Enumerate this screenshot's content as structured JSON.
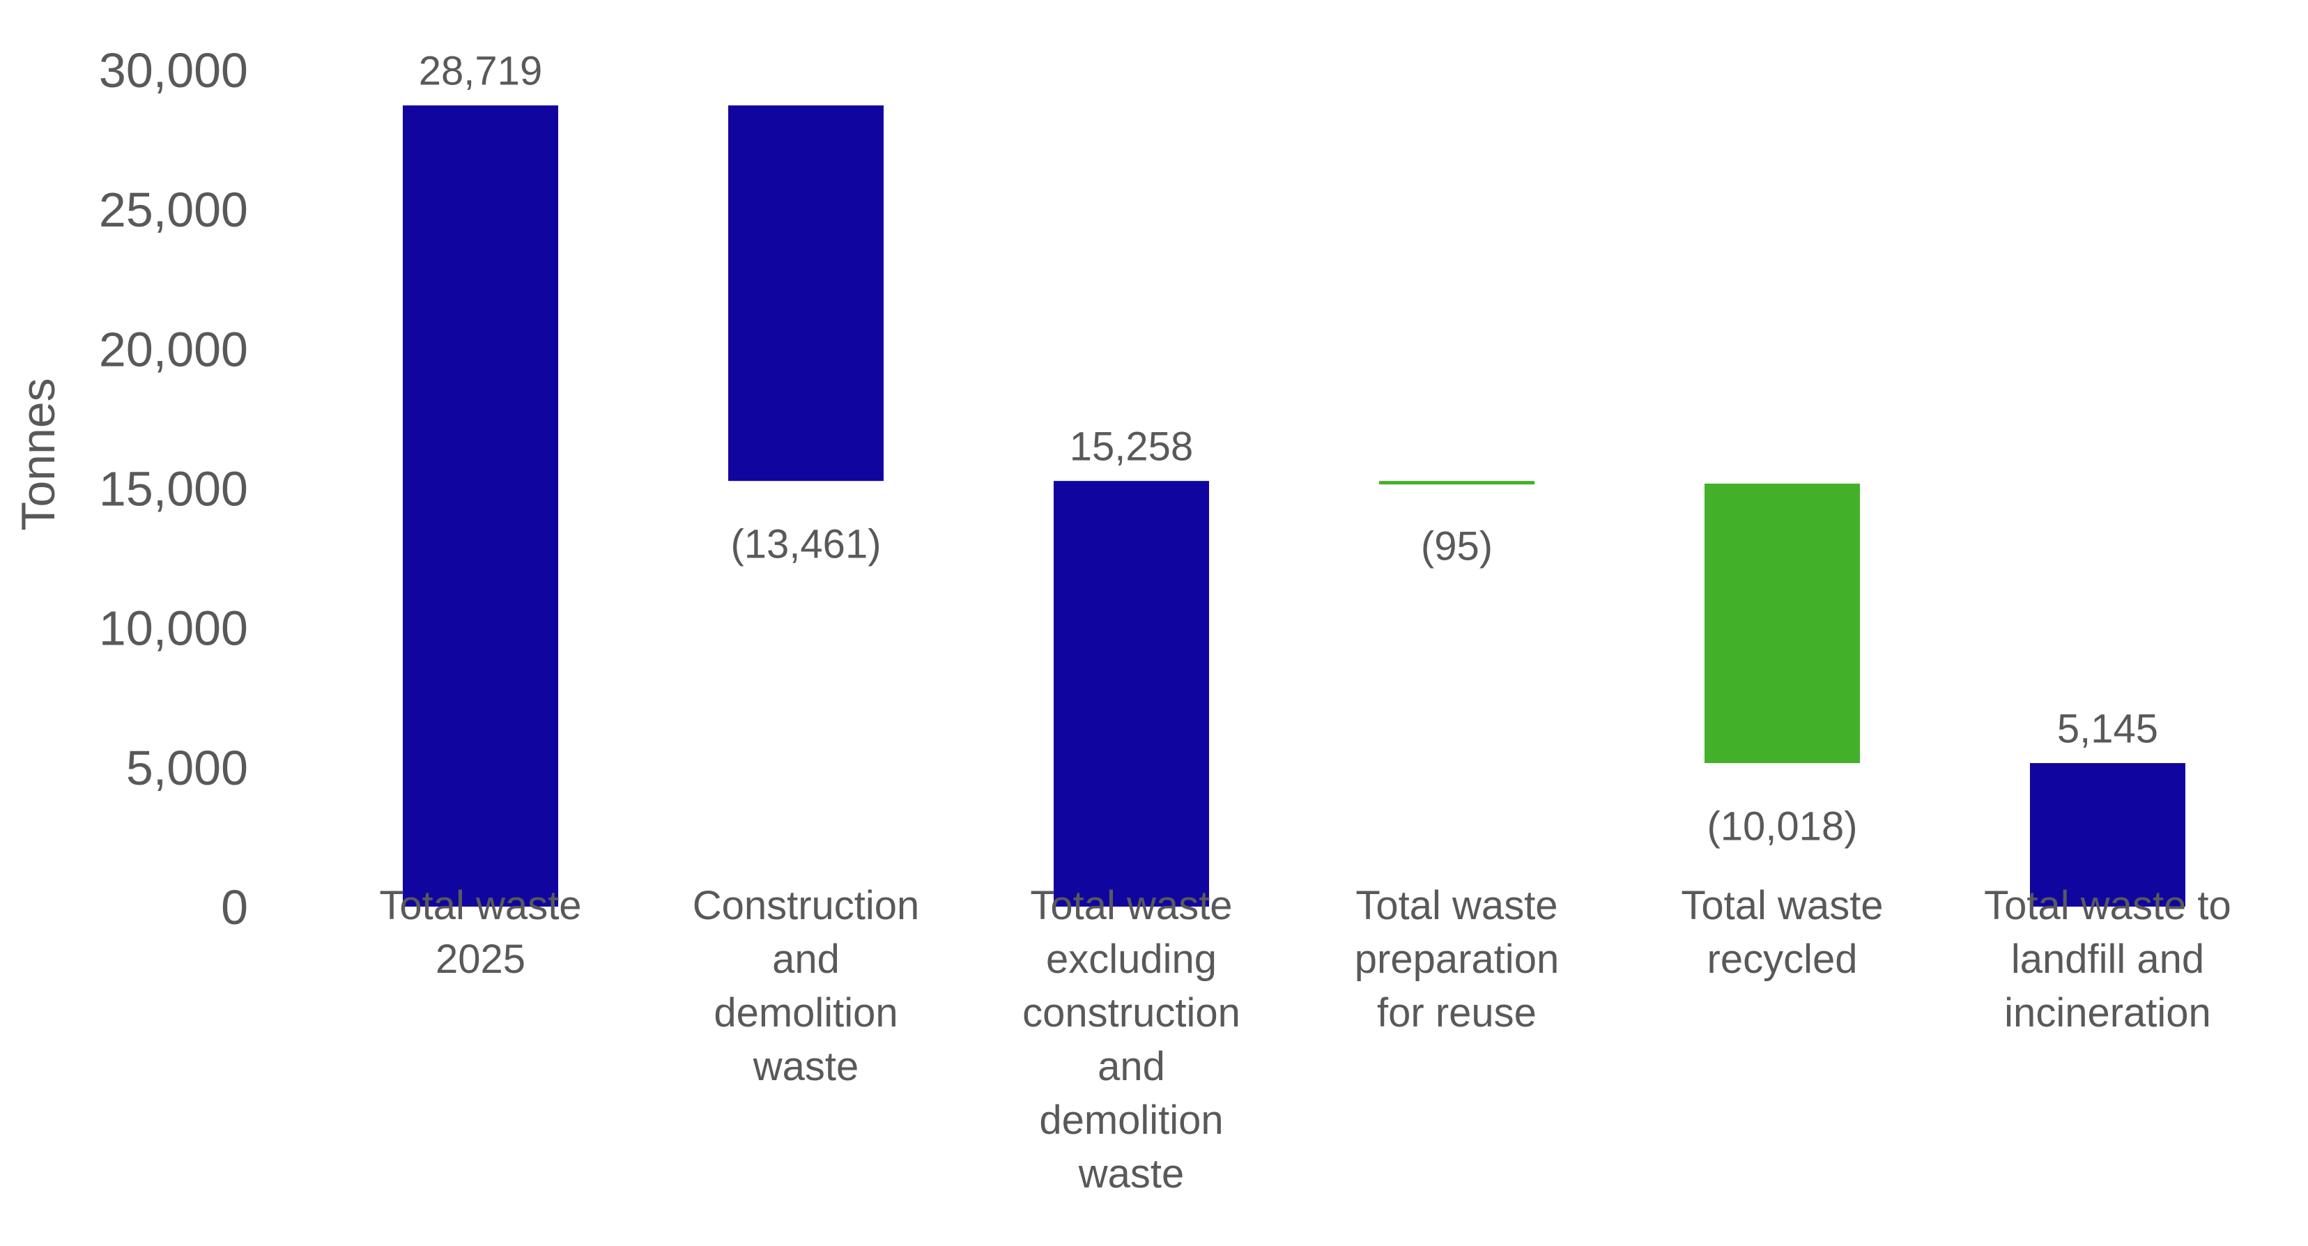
{
  "chart_data": {
    "type": "waterfall",
    "title": "",
    "xlabel": "",
    "ylabel": "Tonnes",
    "ylim": [
      0,
      30000
    ],
    "yticks": [
      0,
      5000,
      10000,
      15000,
      20000,
      25000,
      30000
    ],
    "ytick_labels": [
      "0",
      "5,000",
      "10,000",
      "15,000",
      "20,000",
      "25,000",
      "30,000"
    ],
    "grid": false,
    "legend": "none",
    "categories": [
      [
        "Total waste",
        "2025"
      ],
      [
        "Construction",
        "and",
        "demolition",
        "waste"
      ],
      [
        "Total waste",
        "excluding",
        "construction",
        "and",
        "demolition",
        "waste"
      ],
      [
        "Total waste",
        "preparation",
        "for reuse"
      ],
      [
        "Total waste",
        "recycled"
      ],
      [
        "Total waste to",
        "landfill and",
        "incineration"
      ]
    ],
    "bars": [
      {
        "kind": "total",
        "value": 28719,
        "label": "28,719",
        "color": "#10069F"
      },
      {
        "kind": "decrease",
        "value": -13461,
        "label": "(13,461)",
        "color": "#10069F"
      },
      {
        "kind": "total",
        "value": 15258,
        "label": "15,258",
        "color": "#10069F"
      },
      {
        "kind": "decrease",
        "value": -95,
        "label": "(95)",
        "color": "#43B02A"
      },
      {
        "kind": "decrease",
        "value": -10018,
        "label": "(10,018)",
        "color": "#43B02A"
      },
      {
        "kind": "total",
        "value": 5145,
        "label": "5,145",
        "color": "#10069F"
      }
    ]
  }
}
